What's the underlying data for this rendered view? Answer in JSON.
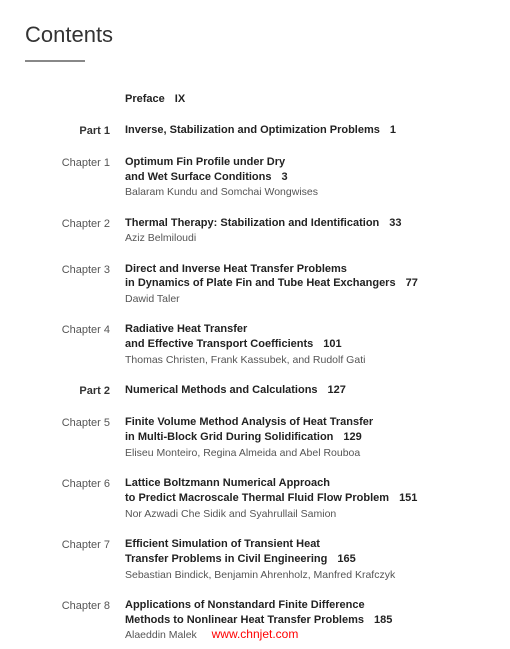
{
  "heading": "Contents",
  "colors": {
    "background": "#ffffff",
    "text": "#333333",
    "authors": "#555555",
    "divider": "#888888",
    "watermark": "#ff0000"
  },
  "typography": {
    "heading_fontsize": 22,
    "body_fontsize": 11,
    "authors_fontsize": 10.5
  },
  "entries": [
    {
      "label": "",
      "label_class": "",
      "title_lines": [
        "Preface"
      ],
      "page": "IX",
      "authors": ""
    },
    {
      "label": "Part 1",
      "label_class": "part-label",
      "title_lines": [
        "Inverse, Stabilization and Optimization Problems"
      ],
      "page": "1",
      "authors": ""
    },
    {
      "label": "Chapter 1",
      "label_class": "",
      "title_lines": [
        "Optimum Fin Profile under Dry",
        "and Wet Surface Conditions"
      ],
      "page": "3",
      "authors": "Balaram Kundu and Somchai Wongwises"
    },
    {
      "label": "Chapter 2",
      "label_class": "",
      "title_lines": [
        "Thermal Therapy: Stabilization and Identification"
      ],
      "page": "33",
      "authors": "Aziz Belmiloudi"
    },
    {
      "label": "Chapter 3",
      "label_class": "",
      "title_lines": [
        "Direct and Inverse Heat Transfer Problems",
        "in Dynamics of Plate Fin and Tube Heat Exchangers"
      ],
      "page": "77",
      "authors": "Dawid Taler"
    },
    {
      "label": "Chapter 4",
      "label_class": "",
      "title_lines": [
        "Radiative Heat Transfer",
        "and Effective Transport Coefficients"
      ],
      "page": "101",
      "authors": "Thomas Christen, Frank Kassubek, and Rudolf Gati"
    },
    {
      "label": "Part 2",
      "label_class": "part-label",
      "title_lines": [
        "Numerical Methods and Calculations"
      ],
      "page": "127",
      "authors": ""
    },
    {
      "label": "Chapter 5",
      "label_class": "",
      "title_lines": [
        "Finite Volume Method Analysis of Heat Transfer",
        "in Multi-Block Grid During Solidification"
      ],
      "page": "129",
      "authors": "Eliseu Monteiro, Regina Almeida and Abel Rouboa"
    },
    {
      "label": "Chapter 6",
      "label_class": "",
      "title_lines": [
        "Lattice Boltzmann Numerical Approach",
        "to Predict Macroscale Thermal Fluid Flow Problem"
      ],
      "page": "151",
      "authors": "Nor Azwadi Che Sidik and Syahrullail Samion"
    },
    {
      "label": "Chapter 7",
      "label_class": "",
      "title_lines": [
        "Efficient Simulation of Transient Heat",
        "Transfer Problems in Civil Engineering"
      ],
      "page": "165",
      "authors": "Sebastian Bindick, Benjamin Ahrenholz, Manfred Krafczyk"
    },
    {
      "label": "Chapter 8",
      "label_class": "",
      "title_lines": [
        "Applications of Nonstandard Finite Difference",
        "Methods to Nonlinear Heat Transfer Problems"
      ],
      "page": "185",
      "authors": "Alaeddin Malek"
    }
  ],
  "watermark": "www.chnjet.com"
}
